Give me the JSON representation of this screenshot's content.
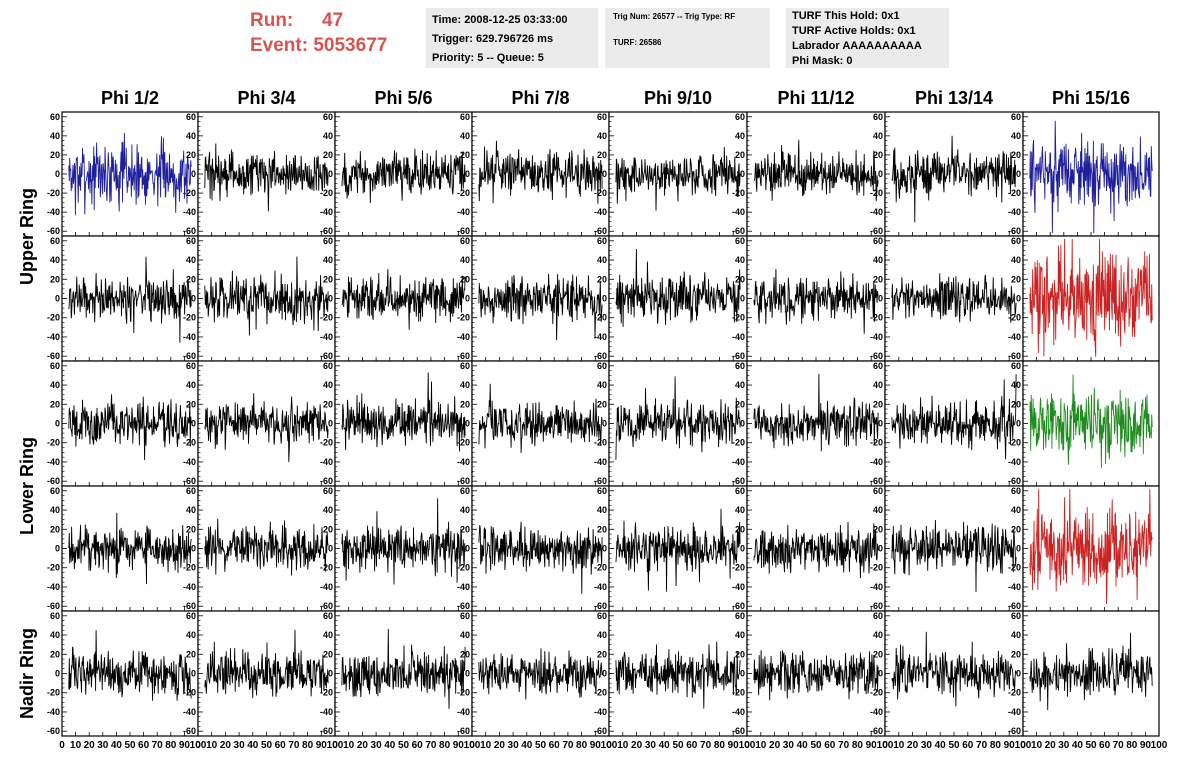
{
  "header": {
    "run_label": "Run:",
    "run_value": "47",
    "event_label": "Event:",
    "event_value": "5053677"
  },
  "info_box_1": {
    "time": "Time: 2008-12-25 03:33:00",
    "trigger": "Trigger: 629.796726 ms",
    "priority": "Priority: 5 -- Queue: 5"
  },
  "info_box_2": {
    "trig_num": "Trig Num: 26577 -- Trig Type: RF",
    "turf": "TURF: 26586"
  },
  "info_box_3": {
    "this_hold": "TURF This Hold: 0x1",
    "active_holds": "TURF Active Holds: 0x1",
    "labrador": "Labrador AAAAAAAAAA",
    "phi_mask": "Phi Mask: 0"
  },
  "columns": [
    "Phi 1/2",
    "Phi 3/4",
    "Phi 5/6",
    "Phi 7/8",
    "Phi 9/10",
    "Phi 11/12",
    "Phi 13/14",
    "Phi 15/16"
  ],
  "rows": [
    "Upper Ring",
    "Lower Ring",
    "Nadir Ring"
  ],
  "chart_data": {
    "type": "line",
    "grid_rows": 5,
    "grid_cols": 8,
    "xlim": [
      0,
      100
    ],
    "ylim": [
      -65,
      65
    ],
    "yticks": [
      -60,
      -40,
      -20,
      0,
      20,
      40,
      60
    ],
    "xticks": [
      0,
      10,
      20,
      30,
      40,
      50,
      60,
      70,
      80,
      90,
      100
    ],
    "grid": false,
    "colors": {
      "default": "#000000",
      "blue": "#1f1f9e",
      "red": "#cc2222",
      "green": "#1e8c1e"
    },
    "highlighted_panels": [
      {
        "row": 0,
        "col": 0,
        "color": "blue",
        "amplitude": 20
      },
      {
        "row": 0,
        "col": 7,
        "color": "blue",
        "amplitude": 22
      },
      {
        "row": 1,
        "col": 7,
        "color": "red",
        "amplitude": 28
      },
      {
        "row": 2,
        "col": 7,
        "color": "green",
        "amplitude": 22
      },
      {
        "row": 3,
        "col": 7,
        "color": "red",
        "amplitude": 25
      }
    ],
    "default_amplitude": 14
  }
}
